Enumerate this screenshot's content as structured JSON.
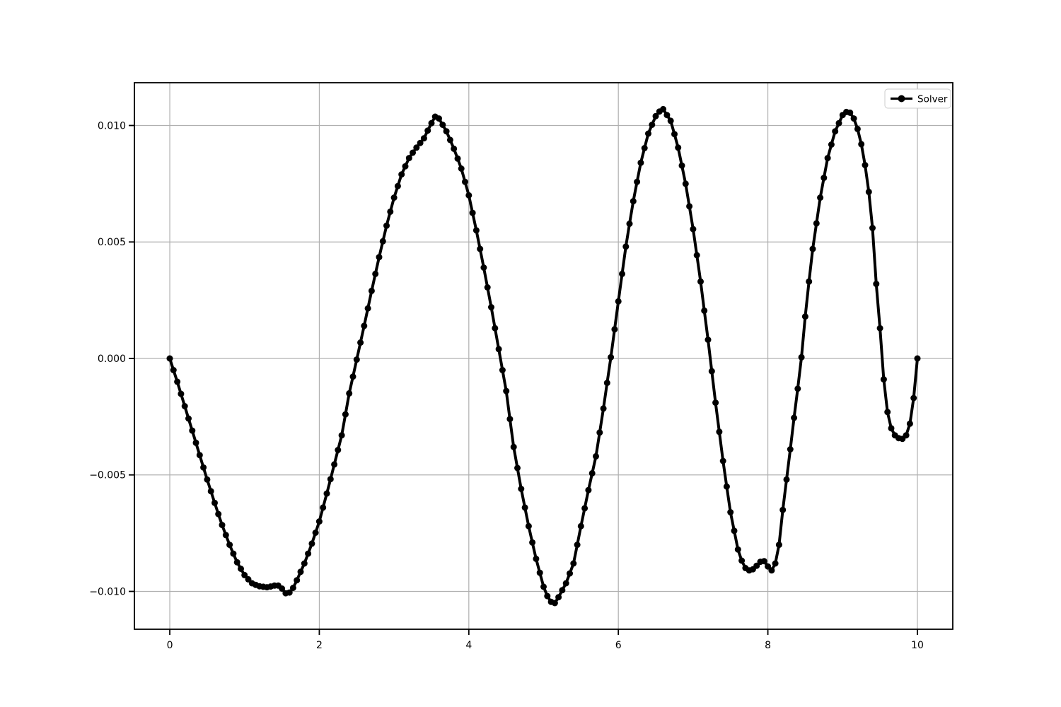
{
  "figure": {
    "background": "#ffffff",
    "colors": {
      "line": "#000000",
      "grid": "#b0b0b0",
      "spine": "#000000",
      "tick_label": "#000000",
      "legend_border": "#cccccc",
      "legend_background": "#ffffff"
    }
  },
  "chart_data": {
    "type": "line",
    "title": "",
    "xlabel": "",
    "ylabel": "",
    "grid": true,
    "legend_label": "Solver",
    "legend_position": "upper right",
    "marker": "o",
    "xlim": [
      -0.4735,
      10.4735
    ],
    "ylim": [
      -0.011624,
      0.011836
    ],
    "xticks": {
      "values": [
        0,
        2,
        4,
        6,
        8,
        10
      ],
      "labels": [
        "0",
        "2",
        "4",
        "6",
        "8",
        "10"
      ]
    },
    "yticks": {
      "values": [
        -0.01,
        -0.005,
        0.0,
        0.005,
        0.01
      ],
      "labels": [
        "−0.010",
        "−0.005",
        "0.000",
        "0.005",
        "0.010"
      ]
    },
    "series": [
      {
        "name": "Solver",
        "color": "#000000",
        "x_start": 0,
        "x_step": 0.05,
        "x_end": 10,
        "y": [
          0.0,
          -0.0005,
          -0.001,
          -0.00152,
          -0.00205,
          -0.00258,
          -0.0031,
          -0.00362,
          -0.00415,
          -0.00468,
          -0.0052,
          -0.0057,
          -0.0062,
          -0.00668,
          -0.00715,
          -0.00758,
          -0.008,
          -0.00838,
          -0.00875,
          -0.00903,
          -0.0093,
          -0.00948,
          -0.00965,
          -0.00972,
          -0.00978,
          -0.0098,
          -0.00982,
          -0.00979,
          -0.00975,
          -0.00975,
          -0.00988,
          -0.01008,
          -0.01005,
          -0.00985,
          -0.00952,
          -0.00916,
          -0.0088,
          -0.00838,
          -0.00795,
          -0.00748,
          -0.007,
          -0.0064,
          -0.0058,
          -0.00518,
          -0.00455,
          -0.00393,
          -0.0033,
          -0.0024,
          -0.0015,
          -0.00078,
          -5e-05,
          0.00068,
          0.0014,
          0.00215,
          0.0029,
          0.00363,
          0.00435,
          0.00503,
          0.0057,
          0.0063,
          0.0069,
          0.0074,
          0.0079,
          0.00825,
          0.0086,
          0.00883,
          0.00905,
          0.00925,
          0.00945,
          0.00978,
          0.0101,
          0.01038,
          0.0103,
          0.01003,
          0.00975,
          0.00938,
          0.009,
          0.00858,
          0.00815,
          0.00758,
          0.007,
          0.00625,
          0.0055,
          0.0047,
          0.0039,
          0.00305,
          0.0022,
          0.0013,
          0.0004,
          -0.0005,
          -0.0014,
          -0.0026,
          -0.0038,
          -0.0047,
          -0.0056,
          -0.0064,
          -0.0072,
          -0.0079,
          -0.0086,
          -0.0092,
          -0.0098,
          -0.0102,
          -0.01045,
          -0.0105,
          -0.01025,
          -0.00995,
          -0.00965,
          -0.00923,
          -0.0088,
          -0.008,
          -0.0072,
          -0.00643,
          -0.00565,
          -0.00493,
          -0.0042,
          -0.00318,
          -0.00215,
          -0.00105,
          5e-05,
          0.00125,
          0.00245,
          0.00363,
          0.0048,
          0.00578,
          0.00675,
          0.00758,
          0.0084,
          0.00903,
          0.00965,
          0.01003,
          0.0104,
          0.0106,
          0.0107,
          0.01045,
          0.0102,
          0.00963,
          0.00905,
          0.00828,
          0.0075,
          0.00653,
          0.00555,
          0.00443,
          0.0033,
          0.00205,
          0.0008,
          -0.00055,
          -0.0019,
          -0.00315,
          -0.0044,
          -0.0055,
          -0.0066,
          -0.0074,
          -0.0082,
          -0.00868,
          -0.009,
          -0.0091,
          -0.00905,
          -0.0089,
          -0.00873,
          -0.0087,
          -0.00893,
          -0.0091,
          -0.0088,
          -0.008,
          -0.0065,
          -0.0052,
          -0.0039,
          -0.00255,
          -0.0013,
          5e-05,
          0.0018,
          0.0033,
          0.0047,
          0.0058,
          0.0069,
          0.00775,
          0.0086,
          0.00918,
          0.00975,
          0.0101,
          0.01045,
          0.01058,
          0.01055,
          0.0103,
          0.00985,
          0.0092,
          0.0083,
          0.00715,
          0.0056,
          0.0032,
          0.0013,
          -0.0009,
          -0.0023,
          -0.003,
          -0.0033,
          -0.00342,
          -0.00345,
          -0.0033,
          -0.0028,
          -0.0017,
          0.0
        ]
      }
    ]
  }
}
